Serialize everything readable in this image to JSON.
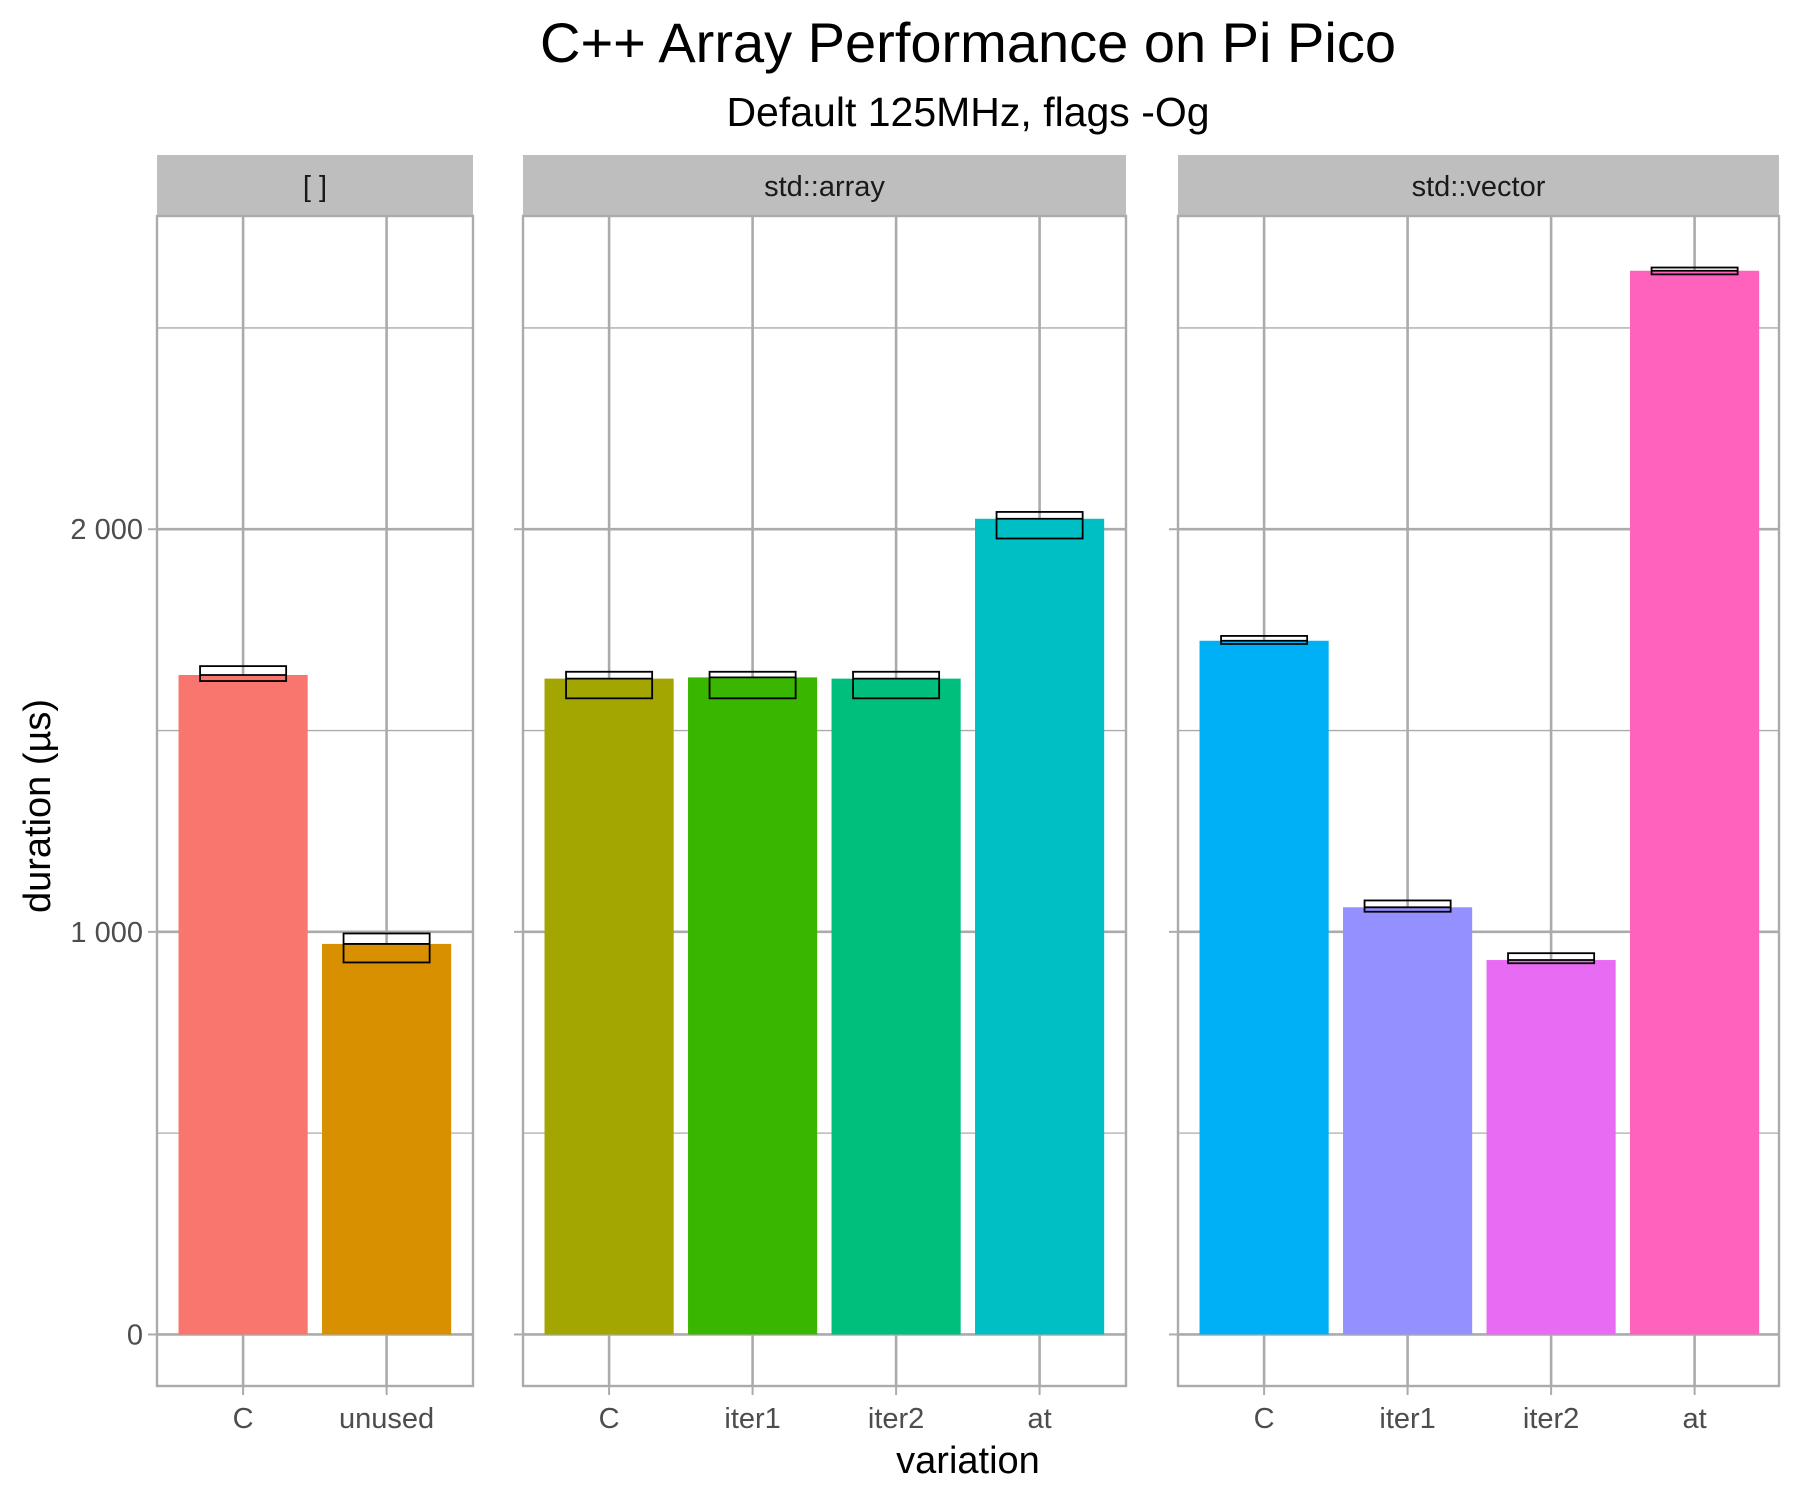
{
  "chart_data": {
    "type": "bar",
    "title": "C++ Array Performance on Pi Pico",
    "subtitle": "Default 125MHz, flags -Og",
    "xlabel": "variation",
    "ylabel": "duration (µs)",
    "ylim": [
      -128,
      2778
    ],
    "yticks": [
      0,
      1000,
      2000
    ],
    "ytick_labels": [
      "0",
      "1 000",
      "2 000"
    ],
    "y_minor_gridlines": [
      500,
      1500,
      2500
    ],
    "grid": true,
    "legend": "none",
    "facets": [
      {
        "label": "[ ]",
        "categories": [
          "C",
          "unused"
        ],
        "values": [
          1638,
          970
        ],
        "error_low": [
          1623,
          924
        ],
        "error_high": [
          1660,
          996
        ],
        "colors": [
          "#F8766D",
          "#D89000"
        ]
      },
      {
        "label": "std::array",
        "categories": [
          "C",
          "iter1",
          "iter2",
          "at"
        ],
        "values": [
          1629,
          1632,
          1629,
          2026
        ],
        "error_low": [
          1580,
          1580,
          1580,
          1977
        ],
        "error_high": [
          1646,
          1646,
          1646,
          2043
        ],
        "colors": [
          "#A3A500",
          "#39B600",
          "#00BF7D",
          "#00BFC4"
        ]
      },
      {
        "label": "std::vector",
        "categories": [
          "C",
          "iter1",
          "iter2",
          "at"
        ],
        "values": [
          1723,
          1061,
          930,
          2642
        ],
        "error_low": [
          1715,
          1050,
          922,
          2633
        ],
        "error_high": [
          1735,
          1078,
          947,
          2650
        ],
        "colors": [
          "#00B0F6",
          "#9590FF",
          "#E76BF3",
          "#FF62BC"
        ]
      }
    ]
  }
}
